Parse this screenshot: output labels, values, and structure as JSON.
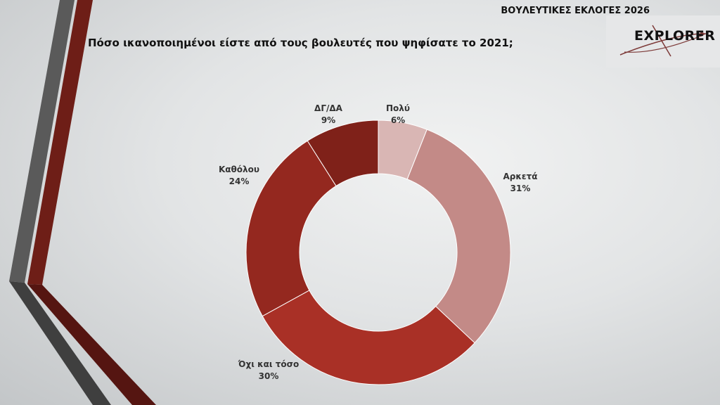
{
  "header": {
    "survey": "ΒΟΥΛΕΥΤΙΚΕΣ ΕΚΛΟΓΕΣ 2026",
    "logo": "EXPLORER"
  },
  "chart_data": {
    "type": "pie",
    "donut": true,
    "title": "Πόσο ικανοποιημένοι είστε από τους βουλευτές που ψηφίσατε το 2021;",
    "unit": "%",
    "slices": [
      {
        "label": "Πολύ",
        "value": 6,
        "display": "6%",
        "color": "#d9b6b4"
      },
      {
        "label": "Αρκετά",
        "value": 31,
        "display": "31%",
        "color": "#c38a87"
      },
      {
        "label": "Όχι και τόσο",
        "value": 30,
        "display": "30%",
        "color": "#a93026"
      },
      {
        "label": "Καθόλου",
        "value": 24,
        "display": "24%",
        "color": "#94281f"
      },
      {
        "label": "ΔΓ/ΔΑ",
        "value": 9,
        "display": "9%",
        "color": "#7f2119"
      }
    ]
  }
}
